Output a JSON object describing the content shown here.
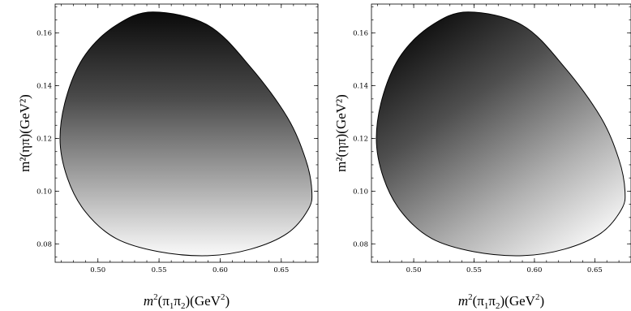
{
  "chart_data": [
    {
      "type": "heatmap",
      "xlabel": {
        "base": "m",
        "sup": "2",
        "body": "(π",
        "s1": "1",
        "mid": "π",
        "s2": "2",
        "tail": ")(GeV",
        "sup2": "2",
        "end": ")"
      },
      "ylabel": "m²(ηπ)(GeV²)",
      "xlim": [
        0.465,
        0.68
      ],
      "ylim": [
        0.073,
        0.171
      ],
      "xticks": [
        0.5,
        0.55,
        0.6,
        0.65
      ],
      "xtick_labels": [
        "0.50",
        "0.55",
        "0.60",
        "0.65"
      ],
      "yticks": [
        0.08,
        0.1,
        0.12,
        0.14,
        0.16
      ],
      "ytick_labels": [
        "0.08",
        "0.10",
        "0.12",
        "0.14",
        "0.16"
      ],
      "grid": false,
      "shading": "dark at top, light at bottom",
      "boundary": [
        [
          0.545,
          0.168
        ],
        [
          0.515,
          0.163
        ],
        [
          0.49,
          0.152
        ],
        [
          0.475,
          0.137
        ],
        [
          0.469,
          0.12
        ],
        [
          0.475,
          0.105
        ],
        [
          0.49,
          0.092
        ],
        [
          0.515,
          0.082
        ],
        [
          0.55,
          0.077
        ],
        [
          0.59,
          0.0755
        ],
        [
          0.625,
          0.078
        ],
        [
          0.655,
          0.084
        ],
        [
          0.672,
          0.093
        ],
        [
          0.675,
          0.1
        ],
        [
          0.67,
          0.112
        ],
        [
          0.655,
          0.128
        ],
        [
          0.625,
          0.147
        ],
        [
          0.59,
          0.163
        ],
        [
          0.545,
          0.168
        ]
      ]
    },
    {
      "type": "heatmap",
      "xlabel": {
        "base": "m",
        "sup": "2",
        "body": "(π",
        "s1": "1",
        "mid": "π",
        "s2": "2",
        "tail": ")(GeV",
        "sup2": "2",
        "end": ")"
      },
      "ylabel": "m²(ηπ)(GeV²)",
      "xlim": [
        0.465,
        0.68
      ],
      "ylim": [
        0.073,
        0.171
      ],
      "xticks": [
        0.5,
        0.55,
        0.6,
        0.65
      ],
      "xtick_labels": [
        "0.50",
        "0.55",
        "0.60",
        "0.65"
      ],
      "yticks": [
        0.08,
        0.1,
        0.12,
        0.14,
        0.16
      ],
      "ytick_labels": [
        "0.08",
        "0.10",
        "0.12",
        "0.14",
        "0.16"
      ],
      "grid": false,
      "shading": "dark at top-left, light at bottom-right",
      "boundary": [
        [
          0.545,
          0.168
        ],
        [
          0.515,
          0.163
        ],
        [
          0.49,
          0.152
        ],
        [
          0.475,
          0.137
        ],
        [
          0.469,
          0.12
        ],
        [
          0.475,
          0.105
        ],
        [
          0.49,
          0.092
        ],
        [
          0.515,
          0.082
        ],
        [
          0.55,
          0.077
        ],
        [
          0.59,
          0.0755
        ],
        [
          0.625,
          0.078
        ],
        [
          0.655,
          0.084
        ],
        [
          0.672,
          0.093
        ],
        [
          0.675,
          0.1
        ],
        [
          0.67,
          0.112
        ],
        [
          0.655,
          0.128
        ],
        [
          0.625,
          0.147
        ],
        [
          0.59,
          0.163
        ],
        [
          0.545,
          0.168
        ]
      ]
    }
  ]
}
